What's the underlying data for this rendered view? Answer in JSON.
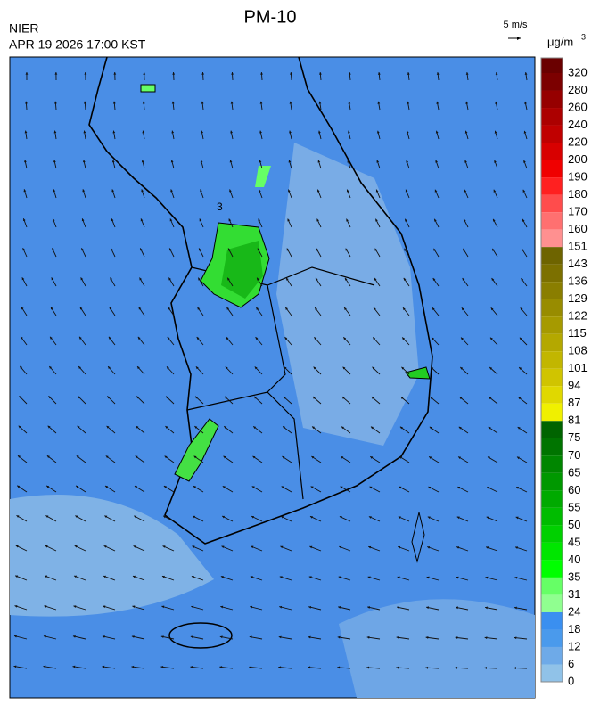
{
  "header": {
    "title": "PM-10",
    "agency": "NIER",
    "timestamp": "APR 19 2026 17:00 KST",
    "wind_scale": "5 m/s",
    "unit": "μg/m",
    "unit_power": "3"
  },
  "map_label": "3",
  "colorbar": {
    "labels": [
      320,
      280,
      260,
      240,
      220,
      200,
      190,
      180,
      170,
      160,
      151,
      143,
      136,
      129,
      122,
      115,
      108,
      101,
      94,
      87,
      81,
      75,
      70,
      65,
      60,
      55,
      50,
      45,
      40,
      35,
      31,
      24,
      18,
      12,
      6,
      0
    ],
    "colors": [
      "#6a0000",
      "#7c0000",
      "#960000",
      "#ac0000",
      "#c00000",
      "#d80000",
      "#f00000",
      "#ff2020",
      "#ff4c4c",
      "#ff7070",
      "#ff9090",
      "#6e6400",
      "#7c7000",
      "#8a7e00",
      "#988c00",
      "#a69a00",
      "#b4a800",
      "#c2b600",
      "#d0c400",
      "#e0d800",
      "#f0f000",
      "#006400",
      "#007400",
      "#008600",
      "#009800",
      "#00aa00",
      "#00bc00",
      "#00d000",
      "#00e600",
      "#00ff00",
      "#66ff66",
      "#90ff90",
      "#3a8ff0",
      "#4a9aec",
      "#6eaae8",
      "#90c2e8"
    ]
  }
}
